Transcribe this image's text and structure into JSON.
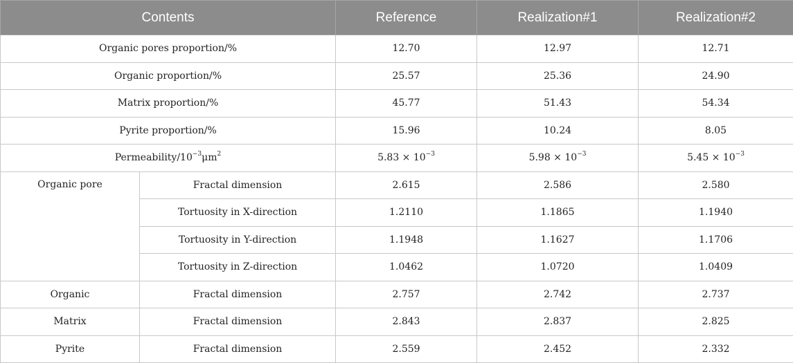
{
  "headers": [
    "Contents",
    "Reference",
    "Realization#1",
    "Realization#2"
  ],
  "rows": [
    {
      "label": "Organic pores proportion/%",
      "values": [
        "12.70",
        "12.97",
        "12.71"
      ]
    },
    {
      "label": "Organic proportion/%",
      "values": [
        "25.57",
        "25.36",
        "24.90"
      ]
    },
    {
      "label": "Matrix proportion/%",
      "values": [
        "45.77",
        "51.43",
        "54.34"
      ]
    },
    {
      "label": "Pyrite proportion/%",
      "values": [
        "15.96",
        "10.24",
        "8.05"
      ]
    }
  ],
  "permeability": {
    "label_pre": "Permeability/10",
    "label_exp": "−3",
    "label_unit": "μm",
    "label_unit_exp": "2",
    "values": [
      {
        "mantissa": "5.83 × 10",
        "exp": "−3"
      },
      {
        "mantissa": "5.98 × 10",
        "exp": "−3"
      },
      {
        "mantissa": "5.45 × 10",
        "exp": "−3"
      }
    ]
  },
  "organic_pore": {
    "label": "Organic pore",
    "rows": [
      {
        "label": "Fractal dimension",
        "values": [
          "2.615",
          "2.586",
          "2.580"
        ]
      },
      {
        "label": "Tortuosity in X-direction",
        "values": [
          "1.2110",
          "1.1865",
          "1.1940"
        ]
      },
      {
        "label": "Tortuosity in Y-direction",
        "values": [
          "1.1948",
          "1.1627",
          "1.1706"
        ]
      },
      {
        "label": "Tortuosity in Z-direction",
        "values": [
          "1.0462",
          "1.0720",
          "1.0409"
        ]
      }
    ]
  },
  "phases": [
    {
      "label": "Organic",
      "sub": "Fractal dimension",
      "values": [
        "2.757",
        "2.742",
        "2.737"
      ]
    },
    {
      "label": "Matrix",
      "sub": "Fractal dimension",
      "values": [
        "2.843",
        "2.837",
        "2.825"
      ]
    },
    {
      "label": "Pyrite",
      "sub": "Fractal dimension",
      "values": [
        "2.559",
        "2.452",
        "2.332"
      ]
    }
  ]
}
